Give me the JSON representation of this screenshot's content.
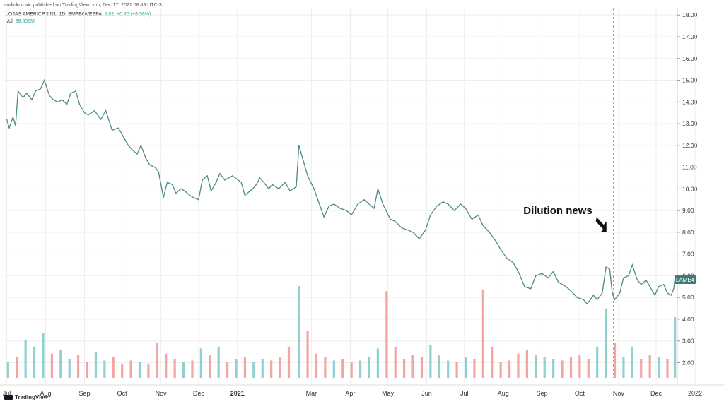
{
  "header": {
    "published_by": "vodinkrkovic published on TradingView.com, Dec 17, 2021 08:49 UTC-3"
  },
  "legend": {
    "symbol": "LOJAS AMERICPN N1, 1D, BMFBOVESPA",
    "last": "5.82",
    "change": "+0.46 (+8.58%)",
    "vol_label": "Vol",
    "vol_value": "89.506M"
  },
  "annotation": {
    "text": "Dilution news"
  },
  "price_badge": "LAME4",
  "footer": {
    "brand": "TradingView"
  },
  "colors": {
    "line": "#4e8885",
    "vol_up": "#8ed1cf",
    "vol_down": "#f3a5a1",
    "grid": "#eeeeee",
    "badge": "#3f7c78"
  },
  "chart_data": {
    "type": "line",
    "title": "",
    "xlabel": "",
    "ylabel": "",
    "y_ticks": [
      "2.00",
      "3.00",
      "4.00",
      "5.00",
      "6.00",
      "7.00",
      "8.00",
      "9.00",
      "10.00",
      "11.00",
      "12.00",
      "13.00",
      "14.00",
      "15.00",
      "16.00",
      "17.00",
      "18.00"
    ],
    "ylim": [
      1.3,
      18.3
    ],
    "x_ticks": [
      "Jul",
      "Aug",
      "Sep",
      "Oct",
      "Nov",
      "Dec",
      "2021",
      "Mar",
      "Apr",
      "May",
      "Jun",
      "Jul",
      "Aug",
      "Sep",
      "Oct",
      "Nov",
      "Dec",
      "2022"
    ],
    "price_series": {
      "name": "LAME4",
      "points": [
        [
          "2020-07-01",
          13.2
        ],
        [
          "2020-07-03",
          12.8
        ],
        [
          "2020-07-06",
          13.3
        ],
        [
          "2020-07-08",
          12.9
        ],
        [
          "2020-07-10",
          14.5
        ],
        [
          "2020-07-14",
          14.2
        ],
        [
          "2020-07-17",
          14.4
        ],
        [
          "2020-07-21",
          14.1
        ],
        [
          "2020-07-24",
          14.5
        ],
        [
          "2020-07-28",
          14.6
        ],
        [
          "2020-07-31",
          15.0
        ],
        [
          "2020-08-04",
          14.3
        ],
        [
          "2020-08-07",
          14.1
        ],
        [
          "2020-08-11",
          14.0
        ],
        [
          "2020-08-14",
          14.1
        ],
        [
          "2020-08-18",
          13.9
        ],
        [
          "2020-08-21",
          14.4
        ],
        [
          "2020-08-25",
          14.5
        ],
        [
          "2020-08-28",
          13.9
        ],
        [
          "2020-09-01",
          13.5
        ],
        [
          "2020-09-04",
          13.4
        ],
        [
          "2020-09-09",
          13.6
        ],
        [
          "2020-09-14",
          13.2
        ],
        [
          "2020-09-18",
          13.6
        ],
        [
          "2020-09-23",
          12.7
        ],
        [
          "2020-09-28",
          12.8
        ],
        [
          "2020-10-02",
          12.4
        ],
        [
          "2020-10-06",
          12.0
        ],
        [
          "2020-10-09",
          11.8
        ],
        [
          "2020-10-13",
          11.6
        ],
        [
          "2020-10-16",
          12.0
        ],
        [
          "2020-10-20",
          11.4
        ],
        [
          "2020-10-23",
          11.1
        ],
        [
          "2020-10-27",
          11.0
        ],
        [
          "2020-10-30",
          10.8
        ],
        [
          "2020-11-03",
          9.6
        ],
        [
          "2020-11-06",
          10.3
        ],
        [
          "2020-11-10",
          10.2
        ],
        [
          "2020-11-13",
          9.8
        ],
        [
          "2020-11-17",
          10.0
        ],
        [
          "2020-11-20",
          9.9
        ],
        [
          "2020-11-24",
          9.7
        ],
        [
          "2020-11-27",
          9.6
        ],
        [
          "2020-12-01",
          9.5
        ],
        [
          "2020-12-04",
          10.4
        ],
        [
          "2020-12-08",
          10.6
        ],
        [
          "2020-12-11",
          9.9
        ],
        [
          "2020-12-15",
          10.3
        ],
        [
          "2020-12-18",
          10.7
        ],
        [
          "2020-12-22",
          10.4
        ],
        [
          "2020-12-28",
          10.6
        ],
        [
          "2021-01-04",
          10.3
        ],
        [
          "2021-01-07",
          9.7
        ],
        [
          "2021-01-11",
          9.9
        ],
        [
          "2021-01-15",
          10.1
        ],
        [
          "2021-01-19",
          10.5
        ],
        [
          "2021-01-22",
          10.3
        ],
        [
          "2021-01-26",
          10.0
        ],
        [
          "2021-01-29",
          10.2
        ],
        [
          "2021-02-03",
          10.0
        ],
        [
          "2021-02-08",
          10.3
        ],
        [
          "2021-02-12",
          9.9
        ],
        [
          "2021-02-17",
          10.1
        ],
        [
          "2021-02-19",
          12.0
        ],
        [
          "2021-02-23",
          11.2
        ],
        [
          "2021-02-26",
          10.6
        ],
        [
          "2021-03-03",
          10.0
        ],
        [
          "2021-03-08",
          9.2
        ],
        [
          "2021-03-11",
          8.7
        ],
        [
          "2021-03-15",
          9.2
        ],
        [
          "2021-03-19",
          9.3
        ],
        [
          "2021-03-24",
          9.1
        ],
        [
          "2021-03-29",
          9.0
        ],
        [
          "2021-04-02",
          8.8
        ],
        [
          "2021-04-07",
          9.3
        ],
        [
          "2021-04-12",
          9.5
        ],
        [
          "2021-04-16",
          9.3
        ],
        [
          "2021-04-20",
          9.1
        ],
        [
          "2021-04-23",
          10.0
        ],
        [
          "2021-04-27",
          9.3
        ],
        [
          "2021-05-03",
          8.6
        ],
        [
          "2021-05-07",
          8.5
        ],
        [
          "2021-05-12",
          8.2
        ],
        [
          "2021-05-17",
          8.1
        ],
        [
          "2021-05-21",
          8.0
        ],
        [
          "2021-05-26",
          7.7
        ],
        [
          "2021-05-31",
          8.1
        ],
        [
          "2021-06-04",
          8.8
        ],
        [
          "2021-06-09",
          9.2
        ],
        [
          "2021-06-14",
          9.4
        ],
        [
          "2021-06-18",
          9.3
        ],
        [
          "2021-06-23",
          9.0
        ],
        [
          "2021-06-28",
          9.3
        ],
        [
          "2021-07-02",
          9.1
        ],
        [
          "2021-07-07",
          8.6
        ],
        [
          "2021-07-12",
          8.8
        ],
        [
          "2021-07-16",
          8.3
        ],
        [
          "2021-07-21",
          8.0
        ],
        [
          "2021-07-26",
          7.6
        ],
        [
          "2021-07-30",
          7.2
        ],
        [
          "2021-08-04",
          6.8
        ],
        [
          "2021-08-09",
          6.6
        ],
        [
          "2021-08-13",
          6.2
        ],
        [
          "2021-08-18",
          5.5
        ],
        [
          "2021-08-23",
          5.4
        ],
        [
          "2021-08-27",
          6.0
        ],
        [
          "2021-09-01",
          6.1
        ],
        [
          "2021-09-06",
          5.9
        ],
        [
          "2021-09-10",
          6.2
        ],
        [
          "2021-09-14",
          5.7
        ],
        [
          "2021-09-20",
          5.5
        ],
        [
          "2021-09-24",
          5.3
        ],
        [
          "2021-09-29",
          5.0
        ],
        [
          "2021-10-04",
          4.9
        ],
        [
          "2021-10-07",
          4.7
        ],
        [
          "2021-10-12",
          5.1
        ],
        [
          "2021-10-15",
          4.9
        ],
        [
          "2021-10-19",
          5.2
        ],
        [
          "2021-10-22",
          6.4
        ],
        [
          "2021-10-25",
          6.3
        ],
        [
          "2021-10-27",
          5.2
        ],
        [
          "2021-10-29",
          4.9
        ],
        [
          "2021-11-02",
          5.2
        ],
        [
          "2021-11-05",
          5.9
        ],
        [
          "2021-11-09",
          6.0
        ],
        [
          "2021-11-12",
          6.5
        ],
        [
          "2021-11-16",
          5.8
        ],
        [
          "2021-11-19",
          5.6
        ],
        [
          "2021-11-23",
          5.8
        ],
        [
          "2021-11-26",
          5.5
        ],
        [
          "2021-11-30",
          5.1
        ],
        [
          "2021-12-03",
          5.5
        ],
        [
          "2021-12-07",
          5.6
        ],
        [
          "2021-12-10",
          5.2
        ],
        [
          "2021-12-13",
          5.1
        ],
        [
          "2021-12-15",
          5.4
        ],
        [
          "2021-12-16",
          5.82
        ]
      ]
    },
    "volume_series": {
      "name": "Vol",
      "points": [
        [
          "2020-07-02",
          9
        ],
        [
          "2020-07-09",
          12
        ],
        [
          "2020-07-16",
          22
        ],
        [
          "2020-07-23",
          18
        ],
        [
          "2020-07-30",
          26
        ],
        [
          "2020-08-06",
          14
        ],
        [
          "2020-08-13",
          16
        ],
        [
          "2020-08-20",
          11
        ],
        [
          "2020-08-27",
          13
        ],
        [
          "2020-09-03",
          9
        ],
        [
          "2020-09-10",
          15
        ],
        [
          "2020-09-17",
          10
        ],
        [
          "2020-09-24",
          12
        ],
        [
          "2020-10-01",
          8
        ],
        [
          "2020-10-08",
          10
        ],
        [
          "2020-10-15",
          9
        ],
        [
          "2020-10-22",
          8
        ],
        [
          "2020-10-29",
          20
        ],
        [
          "2020-11-05",
          14
        ],
        [
          "2020-11-12",
          11
        ],
        [
          "2020-11-19",
          9
        ],
        [
          "2020-11-26",
          10
        ],
        [
          "2020-12-03",
          17
        ],
        [
          "2020-12-10",
          13
        ],
        [
          "2020-12-17",
          18
        ],
        [
          "2020-12-24",
          9
        ],
        [
          "2020-12-31",
          11
        ],
        [
          "2021-01-07",
          12
        ],
        [
          "2021-01-14",
          9
        ],
        [
          "2021-01-21",
          11
        ],
        [
          "2021-01-28",
          10
        ],
        [
          "2021-02-04",
          12
        ],
        [
          "2021-02-11",
          18
        ],
        [
          "2021-02-19",
          53
        ],
        [
          "2021-02-26",
          27
        ],
        [
          "2021-03-05",
          14
        ],
        [
          "2021-03-12",
          12
        ],
        [
          "2021-03-19",
          10
        ],
        [
          "2021-03-26",
          11
        ],
        [
          "2021-04-02",
          9
        ],
        [
          "2021-04-09",
          10
        ],
        [
          "2021-04-16",
          12
        ],
        [
          "2021-04-23",
          17
        ],
        [
          "2021-04-30",
          50
        ],
        [
          "2021-05-07",
          18
        ],
        [
          "2021-05-14",
          11
        ],
        [
          "2021-05-21",
          13
        ],
        [
          "2021-05-28",
          12
        ],
        [
          "2021-06-04",
          19
        ],
        [
          "2021-06-11",
          13
        ],
        [
          "2021-06-18",
          10
        ],
        [
          "2021-06-25",
          9
        ],
        [
          "2021-07-02",
          12
        ],
        [
          "2021-07-09",
          11
        ],
        [
          "2021-07-16",
          51
        ],
        [
          "2021-07-23",
          18
        ],
        [
          "2021-07-30",
          9
        ],
        [
          "2021-08-06",
          10
        ],
        [
          "2021-08-13",
          14
        ],
        [
          "2021-08-20",
          16
        ],
        [
          "2021-08-27",
          13
        ],
        [
          "2021-09-03",
          12
        ],
        [
          "2021-09-10",
          11
        ],
        [
          "2021-09-17",
          10
        ],
        [
          "2021-09-24",
          12
        ],
        [
          "2021-10-01",
          13
        ],
        [
          "2021-10-08",
          11
        ],
        [
          "2021-10-15",
          18
        ],
        [
          "2021-10-22",
          40
        ],
        [
          "2021-10-29",
          20
        ],
        [
          "2021-11-05",
          12
        ],
        [
          "2021-11-12",
          18
        ],
        [
          "2021-11-19",
          11
        ],
        [
          "2021-11-26",
          13
        ],
        [
          "2021-12-03",
          12
        ],
        [
          "2021-12-10",
          11
        ],
        [
          "2021-12-16",
          35
        ]
      ]
    },
    "events": [
      {
        "label": "Dilution news",
        "date": "2021-10-28"
      }
    ],
    "grid": true,
    "y_axis_side": "right"
  }
}
